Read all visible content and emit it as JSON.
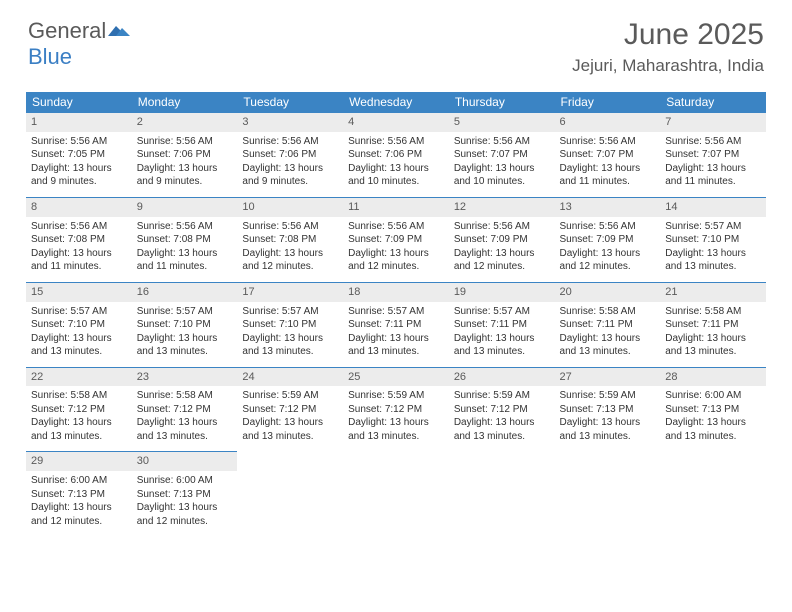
{
  "brand": {
    "part1": "General",
    "part2": "Blue"
  },
  "title": "June 2025",
  "location": "Jejuri, Maharashtra, India",
  "colors": {
    "header_bar": "#3b84c4",
    "daynum_bg": "#ececec",
    "page_bg": "#ffffff",
    "text": "#333333",
    "muted": "#5a5a5a"
  },
  "weekdays": [
    "Sunday",
    "Monday",
    "Tuesday",
    "Wednesday",
    "Thursday",
    "Friday",
    "Saturday"
  ],
  "days": [
    {
      "n": "1",
      "sr": "5:56 AM",
      "ss": "7:05 PM",
      "dl": "13 hours and 9 minutes."
    },
    {
      "n": "2",
      "sr": "5:56 AM",
      "ss": "7:06 PM",
      "dl": "13 hours and 9 minutes."
    },
    {
      "n": "3",
      "sr": "5:56 AM",
      "ss": "7:06 PM",
      "dl": "13 hours and 9 minutes."
    },
    {
      "n": "4",
      "sr": "5:56 AM",
      "ss": "7:06 PM",
      "dl": "13 hours and 10 minutes."
    },
    {
      "n": "5",
      "sr": "5:56 AM",
      "ss": "7:07 PM",
      "dl": "13 hours and 10 minutes."
    },
    {
      "n": "6",
      "sr": "5:56 AM",
      "ss": "7:07 PM",
      "dl": "13 hours and 11 minutes."
    },
    {
      "n": "7",
      "sr": "5:56 AM",
      "ss": "7:07 PM",
      "dl": "13 hours and 11 minutes."
    },
    {
      "n": "8",
      "sr": "5:56 AM",
      "ss": "7:08 PM",
      "dl": "13 hours and 11 minutes."
    },
    {
      "n": "9",
      "sr": "5:56 AM",
      "ss": "7:08 PM",
      "dl": "13 hours and 11 minutes."
    },
    {
      "n": "10",
      "sr": "5:56 AM",
      "ss": "7:08 PM",
      "dl": "13 hours and 12 minutes."
    },
    {
      "n": "11",
      "sr": "5:56 AM",
      "ss": "7:09 PM",
      "dl": "13 hours and 12 minutes."
    },
    {
      "n": "12",
      "sr": "5:56 AM",
      "ss": "7:09 PM",
      "dl": "13 hours and 12 minutes."
    },
    {
      "n": "13",
      "sr": "5:56 AM",
      "ss": "7:09 PM",
      "dl": "13 hours and 12 minutes."
    },
    {
      "n": "14",
      "sr": "5:57 AM",
      "ss": "7:10 PM",
      "dl": "13 hours and 13 minutes."
    },
    {
      "n": "15",
      "sr": "5:57 AM",
      "ss": "7:10 PM",
      "dl": "13 hours and 13 minutes."
    },
    {
      "n": "16",
      "sr": "5:57 AM",
      "ss": "7:10 PM",
      "dl": "13 hours and 13 minutes."
    },
    {
      "n": "17",
      "sr": "5:57 AM",
      "ss": "7:10 PM",
      "dl": "13 hours and 13 minutes."
    },
    {
      "n": "18",
      "sr": "5:57 AM",
      "ss": "7:11 PM",
      "dl": "13 hours and 13 minutes."
    },
    {
      "n": "19",
      "sr": "5:57 AM",
      "ss": "7:11 PM",
      "dl": "13 hours and 13 minutes."
    },
    {
      "n": "20",
      "sr": "5:58 AM",
      "ss": "7:11 PM",
      "dl": "13 hours and 13 minutes."
    },
    {
      "n": "21",
      "sr": "5:58 AM",
      "ss": "7:11 PM",
      "dl": "13 hours and 13 minutes."
    },
    {
      "n": "22",
      "sr": "5:58 AM",
      "ss": "7:12 PM",
      "dl": "13 hours and 13 minutes."
    },
    {
      "n": "23",
      "sr": "5:58 AM",
      "ss": "7:12 PM",
      "dl": "13 hours and 13 minutes."
    },
    {
      "n": "24",
      "sr": "5:59 AM",
      "ss": "7:12 PM",
      "dl": "13 hours and 13 minutes."
    },
    {
      "n": "25",
      "sr": "5:59 AM",
      "ss": "7:12 PM",
      "dl": "13 hours and 13 minutes."
    },
    {
      "n": "26",
      "sr": "5:59 AM",
      "ss": "7:12 PM",
      "dl": "13 hours and 13 minutes."
    },
    {
      "n": "27",
      "sr": "5:59 AM",
      "ss": "7:13 PM",
      "dl": "13 hours and 13 minutes."
    },
    {
      "n": "28",
      "sr": "6:00 AM",
      "ss": "7:13 PM",
      "dl": "13 hours and 13 minutes."
    },
    {
      "n": "29",
      "sr": "6:00 AM",
      "ss": "7:13 PM",
      "dl": "13 hours and 12 minutes."
    },
    {
      "n": "30",
      "sr": "6:00 AM",
      "ss": "7:13 PM",
      "dl": "13 hours and 12 minutes."
    }
  ],
  "labels": {
    "sunrise": "Sunrise:",
    "sunset": "Sunset:",
    "daylight": "Daylight:"
  }
}
